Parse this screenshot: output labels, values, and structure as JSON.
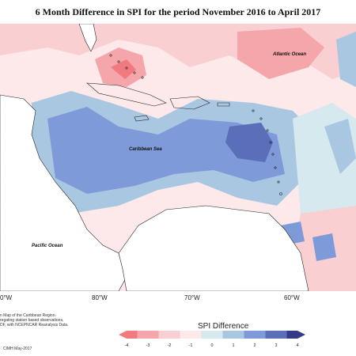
{
  "title": "6 Month Difference in SPI for the period November 2016 to April 2017",
  "labels": {
    "atlantic": "Atlantic Ocean",
    "caribbean": "Caribbean Sea",
    "pacific": "Pacific Ocean"
  },
  "longitudes": [
    "80°W",
    "70°W",
    "60°W"
  ],
  "longitude_partial": "0°W",
  "footnote": {
    "line1": "n Map of the Caribbean Region.",
    "line2": "regating station based observations,",
    "line3": "DF, with NCEPNCAR Reanalysis Data.",
    "line4": "CIMH May-2017"
  },
  "legend": {
    "title": "SPI Difference",
    "ticks": [
      "-4",
      "-3",
      "-2",
      "-1",
      "0",
      "1",
      "2",
      "3",
      "4"
    ],
    "colors": [
      "#f07a80",
      "#f5a6aa",
      "#f9cfd2",
      "#fde8ea",
      "#d5e9ef",
      "#a9c7e0",
      "#7f9ad8",
      "#5b6fb8",
      "#343a8a"
    ]
  }
}
